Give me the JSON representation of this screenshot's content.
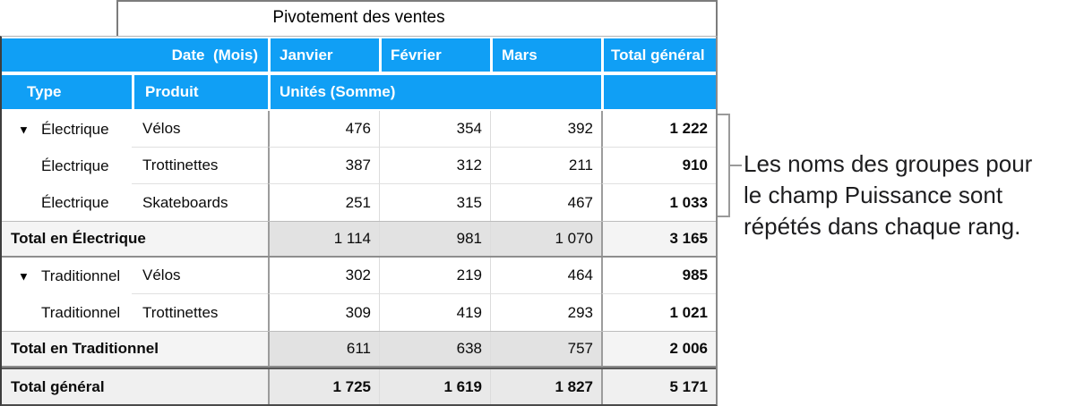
{
  "table": {
    "title": "Pivotement des ventes",
    "header": {
      "date_field": "Date  (Mois)",
      "months": [
        "Janvier",
        "Février",
        "Mars"
      ],
      "total_label": "Total général",
      "type_label": "Type",
      "produit_label": "Produit",
      "units_label": "Unités (Somme)"
    },
    "rows": [
      {
        "kind": "data",
        "disclosure": true,
        "type": "Électrique",
        "produit": "Vélos",
        "values": [
          "476",
          "354",
          "392"
        ],
        "total": "1 222"
      },
      {
        "kind": "data",
        "disclosure": false,
        "type": "Électrique",
        "produit": "Trottinettes",
        "values": [
          "387",
          "312",
          "211"
        ],
        "total": "910"
      },
      {
        "kind": "data",
        "disclosure": false,
        "type": "Électrique",
        "produit": "Skateboards",
        "values": [
          "251",
          "315",
          "467"
        ],
        "total": "1 033"
      },
      {
        "kind": "subtotal",
        "label": "Total en Électrique",
        "values": [
          "1 114",
          "981",
          "1 070"
        ],
        "total": "3 165"
      },
      {
        "kind": "data",
        "disclosure": true,
        "type": "Traditionnel",
        "produit": "Vélos",
        "values": [
          "302",
          "219",
          "464"
        ],
        "total": "985"
      },
      {
        "kind": "data",
        "disclosure": false,
        "type": "Traditionnel",
        "produit": "Trottinettes",
        "values": [
          "309",
          "419",
          "293"
        ],
        "total": "1 021"
      },
      {
        "kind": "subtotal",
        "label": "Total en Traditionnel",
        "values": [
          "611",
          "638",
          "757"
        ],
        "total": "2 006"
      },
      {
        "kind": "grandtotal",
        "label": "Total général",
        "values": [
          "1 725",
          "1 619",
          "1 827"
        ],
        "total": "5 171"
      }
    ]
  },
  "icons": {
    "disclosure_triangle": "▼"
  },
  "annotation": {
    "lines": [
      "Les noms des groupes pour",
      "le champ Puissance sont",
      "répétés dans chaque rang."
    ]
  },
  "colors": {
    "header_blue": "#109ff5",
    "header_text": "#ffffff",
    "subtotal_label_bg": "#f4f4f4",
    "subtotal_value_bg": "#e2e2e2",
    "grandtotal_label_bg": "#f0f0f0",
    "grandtotal_value_bg": "#e9e9e9",
    "bracket_gray": "#9a9a9a",
    "annotation_text": "#1d1d1f"
  }
}
